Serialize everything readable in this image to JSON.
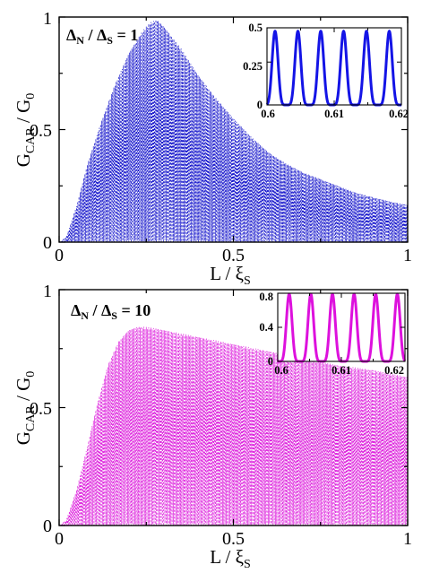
{
  "chart_data": [
    {
      "type": "line",
      "panel": "top",
      "annotation": {
        "main": "Δ",
        "sub1": "N",
        "mid": " / Δ",
        "sub2": "S",
        "tail": " = 1"
      },
      "xlabel": {
        "main": "L / ξ",
        "sub": "S"
      },
      "ylabel": {
        "main": "G",
        "sub": "CAR",
        "mid": " / G",
        "sub2": "0"
      },
      "xlim": [
        0,
        1
      ],
      "ylim": [
        0,
        1
      ],
      "xticks": [
        "0",
        "0.5",
        "1"
      ],
      "yticks": [
        "0",
        "0.5",
        "1"
      ],
      "color": "#1a1acc",
      "style": "dashed",
      "oscillating": true,
      "envelope": {
        "x": [
          0,
          0.02,
          0.05,
          0.08,
          0.12,
          0.16,
          0.2,
          0.24,
          0.26,
          0.28,
          0.3,
          0.35,
          0.4,
          0.45,
          0.5,
          0.55,
          0.6,
          0.65,
          0.7,
          0.75,
          0.8,
          0.85,
          0.9,
          0.95,
          1.0
        ],
        "y": [
          0.0,
          0.02,
          0.16,
          0.34,
          0.53,
          0.7,
          0.84,
          0.94,
          0.975,
          0.99,
          0.96,
          0.86,
          0.74,
          0.64,
          0.55,
          0.47,
          0.4,
          0.35,
          0.31,
          0.28,
          0.25,
          0.22,
          0.2,
          0.18,
          0.165
        ]
      },
      "inset": {
        "type": "line",
        "xlim": [
          0.6,
          0.62
        ],
        "ylim": [
          0,
          0.45
        ],
        "xticks": [
          "0.6",
          "0.61",
          "0.62"
        ],
        "yticks": [
          "0",
          "0.25",
          "0.5"
        ],
        "ytick_values": [
          0,
          0.25,
          0.5
        ],
        "peak_x": [
          0.6012,
          0.6046,
          0.608,
          0.6114,
          0.6148,
          0.6182
        ],
        "peak_y": 0.43,
        "color": "#1414e6"
      }
    },
    {
      "type": "line",
      "panel": "bottom",
      "annotation": {
        "main": "Δ",
        "sub1": "N",
        "mid": " / Δ",
        "sub2": "S",
        "tail": " = 10"
      },
      "xlabel": {
        "main": "L / ξ",
        "sub": "S"
      },
      "ylabel": {
        "main": "G",
        "sub": "CAR",
        "mid": " / G",
        "sub2": "0"
      },
      "xlim": [
        0,
        1
      ],
      "ylim": [
        0,
        1
      ],
      "xticks": [
        "0",
        "0.5",
        "1"
      ],
      "yticks": [
        "0",
        "0.5",
        "1"
      ],
      "color": "#dd22dd",
      "style": "dashed",
      "oscillating": true,
      "envelope": {
        "x": [
          0,
          0.02,
          0.05,
          0.08,
          0.11,
          0.14,
          0.17,
          0.2,
          0.23,
          0.26,
          0.3,
          0.4,
          0.5,
          0.6,
          0.7,
          0.8,
          0.9,
          1.0
        ],
        "y": [
          0.0,
          0.02,
          0.15,
          0.33,
          0.52,
          0.68,
          0.78,
          0.83,
          0.845,
          0.84,
          0.83,
          0.8,
          0.77,
          0.74,
          0.71,
          0.68,
          0.66,
          0.63
        ]
      },
      "inset": {
        "type": "line",
        "xlim": [
          0.6,
          0.62
        ],
        "ylim": [
          0,
          0.8
        ],
        "xticks": [
          "0.6",
          "0.61",
          "0.62"
        ],
        "yticks": [
          "0",
          "0.4",
          "0.8"
        ],
        "ytick_values": [
          0,
          0.4,
          0.8
        ],
        "peak_x": [
          0.6018,
          0.6052,
          0.6086,
          0.612,
          0.6154,
          0.6188
        ],
        "peak_y": 0.79,
        "color": "#dd11dd"
      }
    }
  ]
}
